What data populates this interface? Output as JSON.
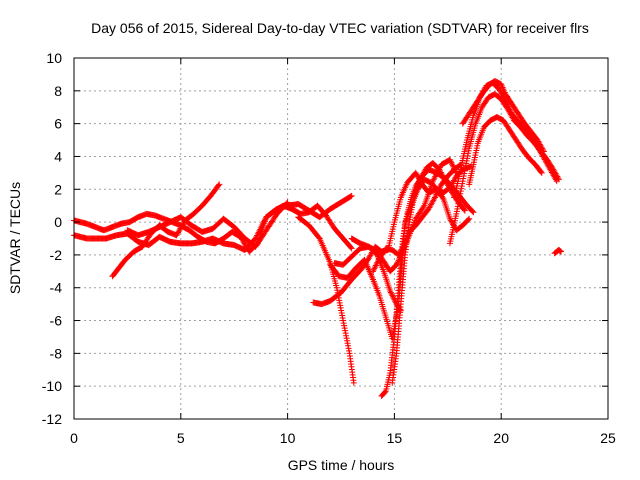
{
  "chart_data": {
    "type": "scatter",
    "title": "Day 056 of 2015, Sidereal Day-to-day VTEC variation (SDTVAR) for receiver flrs",
    "xlabel": "GPS time / hours",
    "ylabel": "SDTVAR / TECUs",
    "xlim": [
      0,
      25
    ],
    "ylim": [
      -12,
      10
    ],
    "xticks": [
      0,
      5,
      10,
      15,
      20,
      25
    ],
    "yticks": [
      -12,
      -10,
      -8,
      -6,
      -4,
      -2,
      0,
      2,
      4,
      6,
      8,
      10
    ],
    "grid": true,
    "marker": "+",
    "color": "#ff0000",
    "series": [
      {
        "x": [
          0.0,
          0.3,
          0.6,
          1.0,
          1.5,
          2.0,
          2.5,
          3.0,
          3.5,
          4.0,
          4.5,
          5.0,
          5.5,
          6.0,
          6.5,
          7.0,
          7.5,
          8.0,
          8.5,
          9.0,
          9.5,
          10.0,
          10.5,
          11.0,
          11.5,
          12.0,
          12.5,
          13.0
        ],
        "y": [
          -0.8,
          -0.9,
          -1.0,
          -1.0,
          -1.0,
          -0.8,
          -0.7,
          -1.2,
          -1.4,
          -0.9,
          -1.2,
          -1.3,
          -1.3,
          -1.2,
          -1.0,
          -1.3,
          -1.4,
          -1.7,
          -1.0,
          0.3,
          0.8,
          1.0,
          1.1,
          0.7,
          0.3,
          0.8,
          1.2,
          1.6
        ]
      },
      {
        "x": [
          0.0,
          0.3,
          0.6,
          1.0,
          1.4,
          1.8,
          2.2,
          2.6,
          3.0,
          3.4,
          3.8,
          4.2,
          4.6,
          5.0,
          5.4,
          5.8,
          6.2,
          6.6,
          7.0,
          7.4,
          7.8,
          8.2,
          8.6,
          9.0,
          9.4,
          9.8,
          10.2,
          10.6,
          11.0,
          11.4,
          11.8,
          12.2,
          12.6,
          13.0
        ],
        "y": [
          0.1,
          0.0,
          -0.1,
          -0.3,
          -0.5,
          -0.3,
          -0.1,
          0.0,
          0.3,
          0.5,
          0.4,
          0.2,
          0.0,
          -0.2,
          -0.5,
          -0.9,
          -1.2,
          -1.3,
          -1.0,
          -0.6,
          -0.9,
          -1.8,
          -1.3,
          0.3,
          0.7,
          1.0,
          0.8,
          0.5,
          0.6,
          1.0,
          0.4,
          -0.4,
          -1.0,
          -1.6
        ]
      },
      {
        "x": [
          1.8,
          2.1,
          2.4,
          2.8,
          3.2,
          3.6,
          4.0,
          4.4,
          4.8,
          5.2,
          5.6,
          6.0,
          6.4,
          6.8
        ],
        "y": [
          -3.3,
          -2.8,
          -2.3,
          -1.8,
          -1.5,
          -0.7,
          -0.2,
          -0.6,
          -0.8,
          0.1,
          0.5,
          1.0,
          1.6,
          2.3
        ]
      },
      {
        "x": [
          2.5,
          3.0,
          3.5,
          4.0,
          4.5,
          5.0,
          5.5,
          6.0,
          6.5,
          7.0,
          7.5,
          8.0,
          8.5,
          9.0,
          9.5,
          10.0
        ],
        "y": [
          -0.5,
          -0.8,
          -0.6,
          -0.3,
          0.0,
          0.3,
          -0.2,
          -0.6,
          -0.4,
          0.2,
          -0.3,
          -1.0,
          -1.5,
          -0.5,
          0.5,
          1.2
        ]
      },
      {
        "x": [
          10.5,
          11.0,
          11.5,
          12.0,
          12.3,
          12.6,
          12.9,
          13.1
        ],
        "y": [
          0.3,
          -0.2,
          -1.0,
          -2.5,
          -4.0,
          -6.0,
          -8.0,
          -9.8
        ]
      },
      {
        "x": [
          11.2,
          11.6,
          12.0,
          12.5,
          13.0,
          13.5,
          13.8,
          14.1,
          14.4,
          14.7,
          15.0,
          15.3,
          15.6,
          16.0,
          16.3,
          16.6,
          17.0,
          17.3,
          17.6,
          17.9,
          18.2,
          18.5
        ],
        "y": [
          -4.9,
          -5.0,
          -4.8,
          -4.3,
          -3.5,
          -2.8,
          -2.2,
          -1.5,
          -1.8,
          -1.7,
          0.0,
          1.5,
          2.4,
          3.0,
          2.3,
          1.8,
          2.0,
          1.4,
          0.2,
          -0.5,
          -0.2,
          0.2
        ]
      },
      {
        "x": [
          12.0,
          12.4,
          12.8,
          13.2,
          13.6,
          14.0,
          14.3,
          14.6,
          14.9,
          15.2,
          15.5,
          15.8,
          16.1,
          16.4,
          16.7,
          17.0,
          17.3,
          17.6,
          17.9,
          18.2,
          18.6
        ],
        "y": [
          -2.6,
          -3.3,
          -3.4,
          -2.8,
          -2.3,
          -3.5,
          -4.5,
          -5.8,
          -7.1,
          -5.0,
          0.0,
          1.0,
          2.0,
          2.6,
          2.4,
          2.0,
          1.8,
          2.1,
          2.8,
          3.2,
          3.4
        ]
      },
      {
        "x": [
          12.2,
          12.6,
          13.0,
          13.4,
          13.8,
          14.2,
          14.5,
          14.8,
          15.1,
          15.3
        ],
        "y": [
          -2.5,
          -2.6,
          -2.1,
          -1.6,
          -1.5,
          -2.0,
          -3.0,
          -4.2,
          -5.0,
          -5.4
        ]
      },
      {
        "x": [
          13.0,
          13.4,
          13.8,
          14.2,
          14.5,
          14.8,
          15.1,
          15.4,
          15.7,
          16.0,
          16.4,
          16.8,
          17.2,
          17.6,
          17.9
        ],
        "y": [
          -1.0,
          -1.3,
          -1.5,
          -1.8,
          -2.4,
          -3.0,
          -2.6,
          -1.8,
          -0.8,
          0.2,
          1.0,
          2.5,
          3.5,
          3.8,
          3.0
        ]
      },
      {
        "x": [
          14.0,
          14.3,
          14.6,
          14.9,
          15.2,
          15.4,
          15.7,
          16.0,
          16.3,
          16.6,
          16.9,
          17.2,
          17.5,
          17.8,
          18.1
        ],
        "y": [
          -3.0,
          -2.2,
          -1.6,
          -1.7,
          -2.0,
          -1.5,
          -0.6,
          -0.2,
          0.3,
          0.8,
          1.5,
          2.3,
          2.8,
          3.2,
          3.5
        ]
      },
      {
        "x": [
          14.4,
          14.6,
          14.8,
          15.0,
          15.2,
          15.4,
          15.6,
          15.8,
          16.0,
          16.3,
          16.6,
          17.0,
          17.4,
          17.8,
          18.1,
          18.4,
          18.7
        ],
        "y": [
          -10.6,
          -10.3,
          -9.2,
          -7.0,
          -4.0,
          -1.0,
          0.5,
          1.5,
          2.2,
          2.8,
          3.2,
          3.0,
          2.6,
          2.0,
          1.5,
          1.0,
          0.6
        ]
      },
      {
        "x": [
          14.9,
          15.1,
          15.3,
          15.5,
          15.7,
          15.9,
          16.2,
          16.5,
          16.8,
          17.1,
          17.4,
          17.7,
          18.0,
          18.3
        ],
        "y": [
          -9.8,
          -8.0,
          -5.0,
          -2.0,
          0.0,
          1.5,
          2.6,
          3.3,
          3.6,
          3.2,
          2.5,
          1.8,
          1.2,
          0.7
        ]
      },
      {
        "x": [
          17.6,
          17.9,
          18.2,
          18.5,
          18.8,
          19.1,
          19.4,
          19.7,
          20.0,
          20.3,
          20.6,
          20.9,
          21.2,
          21.5,
          21.8,
          22.1,
          22.4,
          22.7
        ],
        "y": [
          -1.3,
          0.5,
          2.5,
          4.5,
          6.0,
          7.0,
          7.6,
          7.8,
          7.5,
          6.9,
          6.2,
          5.8,
          5.3,
          4.9,
          4.4,
          3.9,
          3.3,
          2.6
        ]
      },
      {
        "x": [
          17.8,
          18.1,
          18.4,
          18.7,
          19.0,
          19.3,
          19.6,
          19.9,
          20.2,
          20.5,
          20.8,
          21.1,
          21.4,
          21.7,
          22.0,
          22.3,
          22.6
        ],
        "y": [
          1.5,
          3.2,
          5.0,
          6.5,
          7.6,
          8.3,
          8.5,
          8.1,
          7.4,
          6.6,
          6.1,
          5.6,
          5.2,
          4.6,
          3.9,
          3.2,
          2.5
        ]
      },
      {
        "x": [
          18.2,
          18.5,
          18.8,
          19.1,
          19.4,
          19.7,
          20.0,
          20.2,
          20.5,
          20.8,
          21.1,
          21.4,
          21.7,
          22.0
        ],
        "y": [
          6.0,
          6.6,
          7.2,
          7.8,
          8.3,
          8.6,
          8.4,
          7.8,
          7.2,
          6.6,
          6.0,
          5.5,
          5.0,
          4.3
        ]
      },
      {
        "x": [
          18.5,
          18.7,
          18.9,
          19.2,
          19.5,
          19.8,
          20.1,
          20.4,
          20.7,
          21.0,
          21.3,
          21.6,
          21.9
        ],
        "y": [
          2.3,
          3.5,
          4.8,
          5.8,
          6.2,
          6.4,
          6.2,
          5.6,
          5.0,
          4.4,
          3.9,
          3.5,
          3.0
        ]
      },
      {
        "x": [
          22.5,
          22.6,
          22.7,
          22.8
        ],
        "y": [
          -1.9,
          -1.8,
          -1.7,
          -1.8
        ]
      }
    ]
  }
}
